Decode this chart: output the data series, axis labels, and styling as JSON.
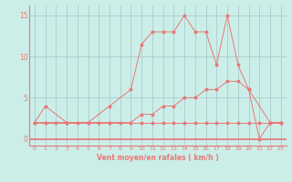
{
  "xlabel": "Vent moyen/en rafales ( km/h )",
  "bg_color": "#cceee8",
  "line_color": "#e87878",
  "grid_color": "#aacccc",
  "xlim": [
    -0.5,
    23.5
  ],
  "ylim": [
    -0.8,
    16.2
  ],
  "yticks": [
    0,
    5,
    10,
    15
  ],
  "xticks": [
    0,
    1,
    2,
    3,
    4,
    5,
    6,
    7,
    8,
    9,
    10,
    11,
    12,
    13,
    14,
    15,
    16,
    17,
    18,
    19,
    20,
    21,
    22,
    23
  ],
  "line1_x": [
    0,
    1,
    2,
    3,
    4,
    5,
    6,
    7,
    8,
    9,
    10,
    11,
    12,
    13,
    14,
    15,
    16,
    17,
    18,
    19,
    20,
    21,
    22,
    23
  ],
  "line1_y": [
    2,
    2,
    2,
    2,
    2,
    2,
    2,
    2,
    2,
    2,
    2,
    2,
    2,
    2,
    2,
    2,
    2,
    2,
    2,
    2,
    2,
    2,
    2,
    2
  ],
  "line2_x": [
    0,
    1,
    3,
    5,
    7,
    9,
    10,
    11,
    12,
    13,
    14,
    15,
    16,
    17,
    18,
    19,
    20,
    22,
    23
  ],
  "line2_y": [
    2,
    2,
    2,
    2,
    2,
    2,
    3,
    3,
    4,
    4,
    5,
    5,
    6,
    6,
    7,
    7,
    6,
    2,
    2
  ],
  "line3_x": [
    0,
    1,
    3,
    5,
    7,
    9,
    10,
    11,
    12,
    13,
    14,
    15,
    16,
    17,
    18,
    19,
    20,
    21,
    22,
    23
  ],
  "line3_y": [
    2,
    4,
    2,
    2,
    4,
    6,
    11.5,
    13,
    13,
    13,
    15,
    13,
    13,
    9,
    15,
    9,
    6,
    0,
    2,
    2
  ]
}
